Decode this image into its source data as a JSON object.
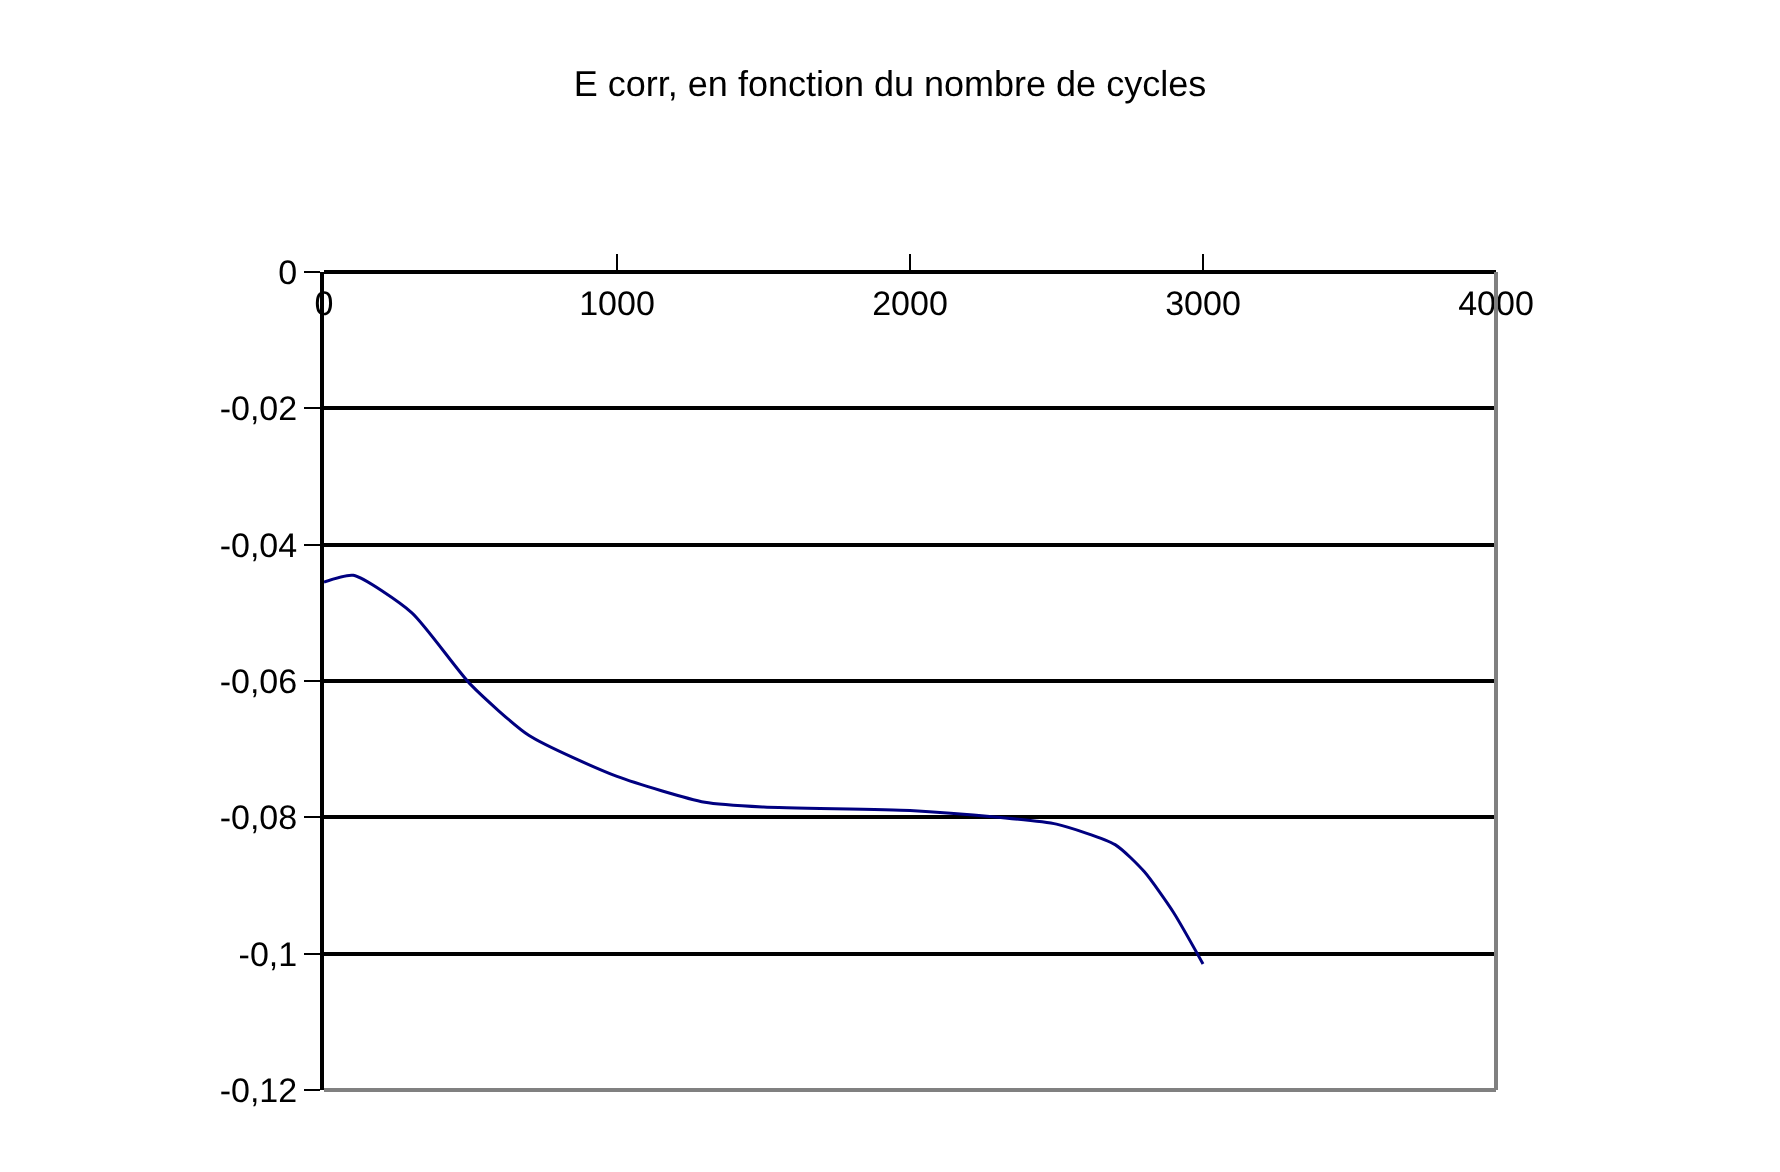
{
  "chart_data": {
    "type": "line",
    "title": "E corr, en fonction du nombre de cycles",
    "x": [
      0,
      100,
      300,
      500,
      700,
      1000,
      1300,
      1500,
      2000,
      2300,
      2500,
      2700,
      2800,
      2900,
      3000
    ],
    "series": [
      {
        "color": "#000080",
        "values": [
          -0.0455,
          -0.0445,
          -0.05,
          -0.0605,
          -0.068,
          -0.074,
          -0.0778,
          -0.0785,
          -0.079,
          -0.08,
          -0.081,
          -0.084,
          -0.088,
          -0.094,
          -0.1015
        ]
      }
    ],
    "xlim": [
      0,
      4000
    ],
    "xticks": [
      0,
      1000,
      2000,
      3000,
      4000
    ],
    "ylim": [
      -0.12,
      0
    ],
    "yticks": [
      {
        "value": -0.12,
        "label": "-0,12"
      },
      {
        "value": -0.1,
        "label": "-0,1"
      },
      {
        "value": -0.08,
        "label": "-0,08"
      },
      {
        "value": -0.06,
        "label": "-0,06"
      },
      {
        "value": -0.04,
        "label": "-0,04"
      },
      {
        "value": -0.02,
        "label": "-0,02"
      },
      {
        "value": 0,
        "label": "0"
      }
    ],
    "grid": "y",
    "marker": "none",
    "line_style": "solid",
    "legend": false
  }
}
